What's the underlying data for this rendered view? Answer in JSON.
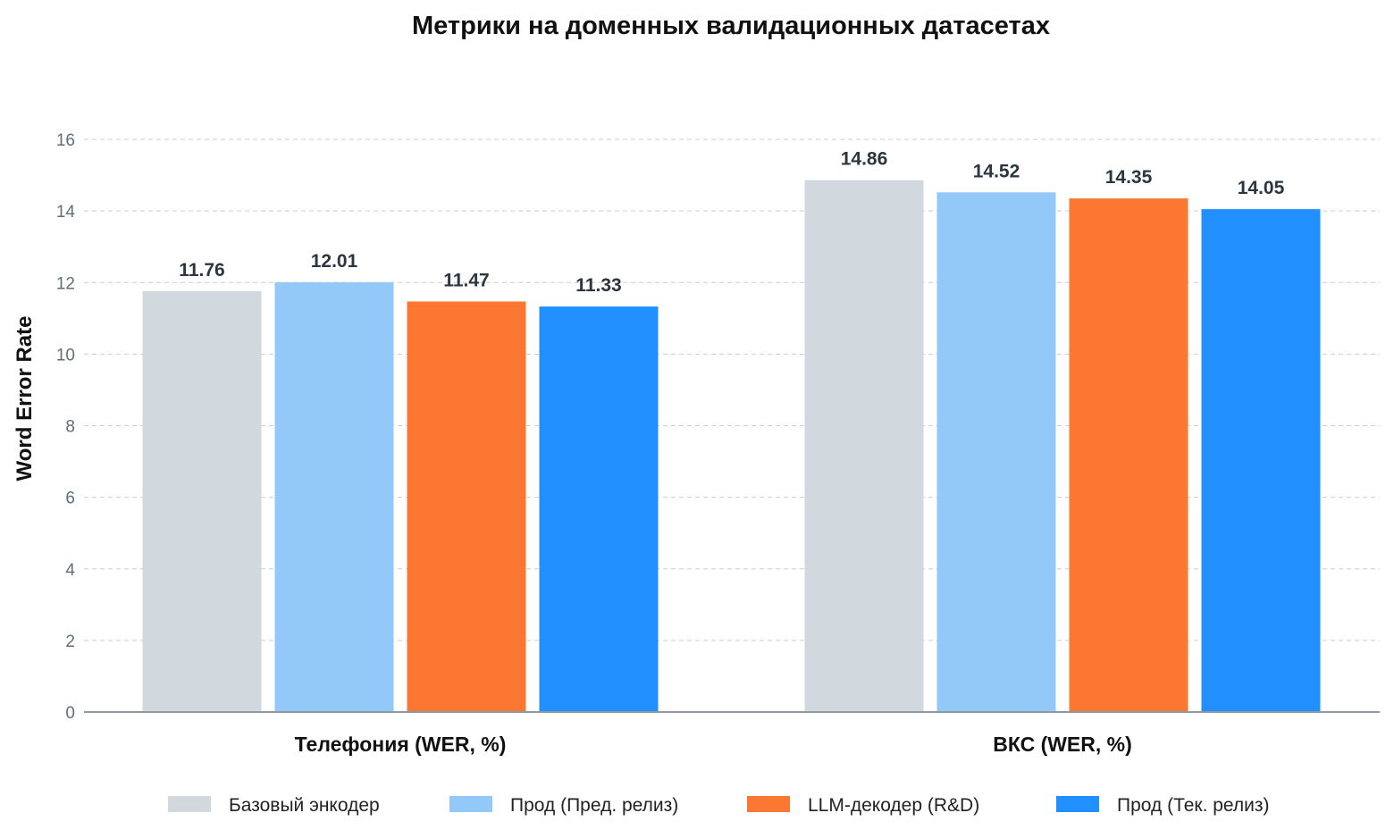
{
  "chart_data": {
    "type": "bar",
    "title": "Метрики на доменных валидационных датасетах",
    "xlabel": "",
    "ylabel": "Word Error Rate",
    "ylim": [
      0,
      16
    ],
    "yticks": [
      0,
      2,
      4,
      6,
      8,
      10,
      12,
      14,
      16
    ],
    "grid": true,
    "legend_position": "bottom",
    "categories": [
      "Телефония (WER, %)",
      "ВКС (WER, %)"
    ],
    "series": [
      {
        "name": "Базовый энкодер",
        "color": "#d2d9de",
        "values": [
          11.76,
          14.86
        ],
        "labels": [
          "11.76",
          "14.86"
        ]
      },
      {
        "name": "Прод (Пред. релиз)",
        "color": "#93c9f8",
        "values": [
          12.01,
          14.52
        ],
        "labels": [
          "12.01",
          "14.52"
        ]
      },
      {
        "name": "LLM-декодер (R&D)",
        "color": "#fc7732",
        "values": [
          11.47,
          14.35
        ],
        "labels": [
          "11.47",
          "14.35"
        ]
      },
      {
        "name": "Прод (Тек. релиз)",
        "color": "#228ffe",
        "values": [
          11.33,
          14.05
        ],
        "labels": [
          "11.33",
          "14.05"
        ]
      }
    ]
  }
}
